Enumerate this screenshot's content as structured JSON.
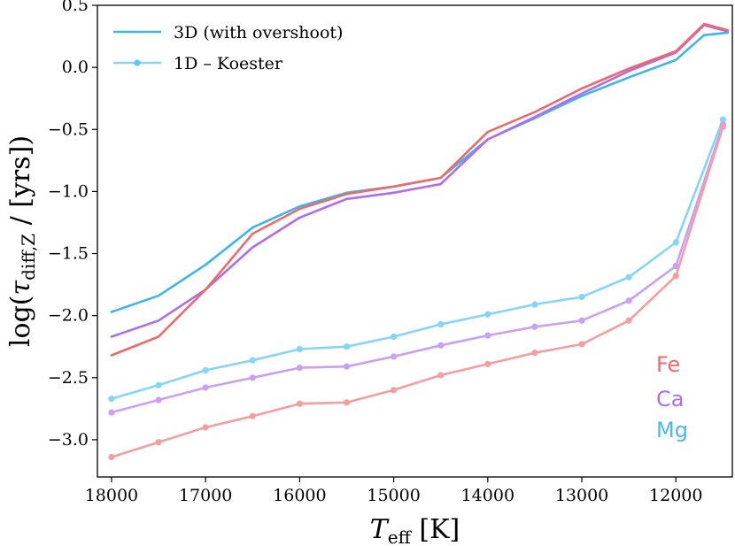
{
  "chart_data": {
    "type": "line",
    "title": "",
    "xlabel_main": "T",
    "xlabel_sub": "eff",
    "xlabel_unit": " [K]",
    "ylabel_pre": "log(",
    "ylabel_tau": "τ",
    "ylabel_sub": "diff,Z",
    "ylabel_post": " / [yrs])",
    "xlim": [
      18150,
      11400
    ],
    "ylim": [
      -3.3,
      0.5
    ],
    "xticks": [
      18000,
      17000,
      16000,
      15000,
      14000,
      13000,
      12000
    ],
    "xtick_labels": [
      "18000",
      "17000",
      "16000",
      "15000",
      "14000",
      "13000",
      "12000"
    ],
    "yticks": [
      0.5,
      0.0,
      -0.5,
      -1.0,
      -1.5,
      -2.0,
      -2.5,
      -3.0
    ],
    "ytick_labels": [
      "0.5",
      "0.0",
      "−0.5",
      "−1.0",
      "−1.5",
      "−2.0",
      "−2.5",
      "−3.0"
    ],
    "legend": {
      "position": "top-left",
      "entries": [
        {
          "label": "3D  (with overshoot)",
          "style": "line"
        },
        {
          "label": "1D – Koester",
          "style": "line-marker"
        }
      ]
    },
    "colors": {
      "Fe": "#ee6a6a",
      "Ca": "#b06cf0",
      "Mg": "#4ab8f0"
    },
    "element_labels": [
      {
        "name": "Fe",
        "color": "#ee6a6a"
      },
      {
        "name": "Ca",
        "color": "#b06cf0"
      },
      {
        "name": "Mg",
        "color": "#4ab8f0"
      }
    ],
    "series": [
      {
        "name": "Mg 3D",
        "element": "Mg",
        "model": "3D",
        "color": "#3db4ee",
        "x": [
          18000,
          17500,
          17000,
          16500,
          16000,
          15500,
          15000,
          14500,
          14000,
          13500,
          13000,
          12500,
          12000,
          11700,
          11450
        ],
        "y": [
          -1.97,
          -1.84,
          -1.59,
          -1.29,
          -1.12,
          -1.01,
          -0.96,
          -0.89,
          -0.58,
          -0.41,
          -0.23,
          -0.08,
          0.06,
          0.26,
          0.28
        ]
      },
      {
        "name": "Ca 3D",
        "element": "Ca",
        "model": "3D",
        "color": "#b06cf0",
        "x": [
          18000,
          17500,
          17000,
          16500,
          16000,
          15500,
          15000,
          14500,
          14000,
          13500,
          13000,
          12500,
          12000,
          11700,
          11450
        ],
        "y": [
          -2.17,
          -2.04,
          -1.79,
          -1.45,
          -1.21,
          -1.06,
          -1.01,
          -0.94,
          -0.58,
          -0.4,
          -0.21,
          -0.03,
          0.12,
          0.34,
          0.29
        ]
      },
      {
        "name": "Fe 3D",
        "element": "Fe",
        "model": "3D",
        "color": "#ee6a6a",
        "x": [
          18000,
          17500,
          17000,
          16500,
          16000,
          15500,
          15000,
          14500,
          14000,
          13500,
          13000,
          12500,
          12000,
          11700,
          11450
        ],
        "y": [
          -2.32,
          -2.17,
          -1.79,
          -1.34,
          -1.14,
          -1.02,
          -0.96,
          -0.89,
          -0.52,
          -0.36,
          -0.17,
          -0.01,
          0.13,
          0.35,
          0.3
        ]
      },
      {
        "name": "Mg 1D",
        "element": "Mg",
        "model": "1D",
        "color": "#85d5f8",
        "x": [
          18000,
          17500,
          17000,
          16500,
          16000,
          15500,
          15000,
          14500,
          14000,
          13500,
          13000,
          12500,
          12000,
          11500
        ],
        "y": [
          -2.67,
          -2.56,
          -2.44,
          -2.36,
          -2.27,
          -2.25,
          -2.17,
          -2.07,
          -1.99,
          -1.91,
          -1.85,
          -1.69,
          -1.41,
          -0.42
        ]
      },
      {
        "name": "Ca 1D",
        "element": "Ca",
        "model": "1D",
        "color": "#c9a0f5",
        "x": [
          18000,
          17500,
          17000,
          16500,
          16000,
          15500,
          15000,
          14500,
          14000,
          13500,
          13000,
          12500,
          12000,
          11500
        ],
        "y": [
          -2.78,
          -2.68,
          -2.58,
          -2.5,
          -2.42,
          -2.41,
          -2.33,
          -2.24,
          -2.16,
          -2.09,
          -2.04,
          -1.88,
          -1.6,
          -0.46
        ]
      },
      {
        "name": "Fe 1D",
        "element": "Fe",
        "model": "1D",
        "color": "#f49ea0",
        "x": [
          18000,
          17500,
          17000,
          16500,
          16000,
          15500,
          15000,
          14500,
          14000,
          13500,
          13000,
          12500,
          12000,
          11500
        ],
        "y": [
          -3.14,
          -3.02,
          -2.9,
          -2.81,
          -2.71,
          -2.7,
          -2.6,
          -2.48,
          -2.39,
          -2.3,
          -2.23,
          -2.04,
          -1.68,
          -0.48
        ]
      }
    ]
  }
}
